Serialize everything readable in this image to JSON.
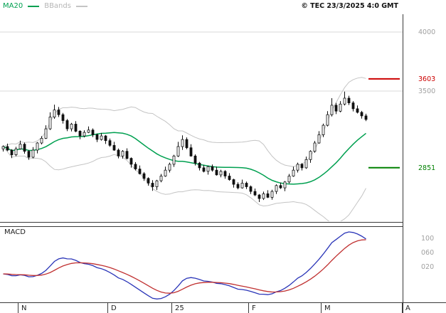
{
  "legend": {
    "ma20_label": "MA20",
    "bbands_label": "BBands"
  },
  "copyright": "© TEC 23/3/2025 4:0 GMT",
  "macd_label": "MACD",
  "price_axis_labels": [
    {
      "text": "4000",
      "price": 4000,
      "color": "#a0a0a0"
    },
    {
      "text": "3603",
      "price": 3603,
      "color": "#cc0000"
    },
    {
      "text": "3500",
      "price": 3500,
      "color": "#a0a0a0"
    },
    {
      "text": "2851",
      "price": 2851,
      "color": "#008000"
    }
  ],
  "macd_axis_labels": [
    {
      "text": "100",
      "value": 100
    },
    {
      "text": "060",
      "value": 60
    },
    {
      "text": "020",
      "value": 20
    }
  ],
  "chart_data": {
    "type": "candlestick",
    "timeframe": "daily",
    "x_ticks": [
      {
        "label": "N",
        "bar": 4
      },
      {
        "label": "D",
        "bar": 25
      },
      {
        "label": "25",
        "bar": 40
      },
      {
        "label": "F",
        "bar": 58
      },
      {
        "label": "M",
        "bar": 75
      },
      {
        "label": "A",
        "bar": 94
      }
    ],
    "colors": {
      "ma20": "#00a050",
      "bbands": "#c4c4c4",
      "candle": "#111111",
      "macd_line": "#2a35b8",
      "signal_line": "#c03030",
      "grid": "#d9d9d9",
      "frame": "#3a3a3a",
      "axis_text": "#a0a0a0",
      "resistance": "#cc0000",
      "support": "#008000"
    },
    "price_pane": {
      "gridlines": [
        4000,
        3500
      ],
      "levels": [
        {
          "name": "resistance",
          "value": 3603,
          "color": "#cc0000"
        },
        {
          "name": "support",
          "value": 2851,
          "color": "#008000"
        }
      ],
      "overlays": [
        {
          "name": "MA20",
          "window": 20
        },
        {
          "name": "BBands",
          "window": 20,
          "stddev": 2
        }
      ],
      "candles_ohlc": [
        [
          3010,
          3040,
          2988,
          3030
        ],
        [
          3030,
          3055,
          2991,
          3000
        ],
        [
          3000,
          3008,
          2932,
          2960
        ],
        [
          2960,
          3028,
          2948,
          3010
        ],
        [
          3010,
          3080,
          3004,
          3050
        ],
        [
          3050,
          3064,
          2970,
          2990
        ],
        [
          2990,
          3000,
          2918,
          2940
        ],
        [
          2940,
          3025,
          2931,
          3000
        ],
        [
          3000,
          3068,
          2972,
          3060
        ],
        [
          3060,
          3118,
          3048,
          3100
        ],
        [
          3100,
          3210,
          3094,
          3180
        ],
        [
          3180,
          3320,
          3170,
          3280
        ],
        [
          3280,
          3385,
          3265,
          3340
        ],
        [
          3340,
          3365,
          3280,
          3300
        ],
        [
          3300,
          3315,
          3225,
          3250
        ],
        [
          3250,
          3264,
          3160,
          3180
        ],
        [
          3180,
          3230,
          3158,
          3220
        ],
        [
          3220,
          3245,
          3151,
          3160
        ],
        [
          3160,
          3168,
          3092,
          3120
        ],
        [
          3120,
          3168,
          3108,
          3150
        ],
        [
          3150,
          3200,
          3144,
          3170
        ],
        [
          3170,
          3184,
          3110,
          3130
        ],
        [
          3130,
          3140,
          3068,
          3090
        ],
        [
          3090,
          3145,
          3081,
          3120
        ],
        [
          3120,
          3128,
          3052,
          3080
        ],
        [
          3080,
          3098,
          3028,
          3040
        ],
        [
          3040,
          3070,
          2994,
          3000
        ],
        [
          3000,
          3014,
          2930,
          2950
        ],
        [
          2950,
          3000,
          2928,
          2990
        ],
        [
          2990,
          3015,
          2921,
          2930
        ],
        [
          2930,
          2938,
          2852,
          2880
        ],
        [
          2880,
          2898,
          2828,
          2840
        ],
        [
          2840,
          2870,
          2794,
          2800
        ],
        [
          2800,
          2814,
          2740,
          2760
        ],
        [
          2760,
          2770,
          2698,
          2720
        ],
        [
          2720,
          2745,
          2655,
          2690
        ],
        [
          2690,
          2748,
          2662,
          2740
        ],
        [
          2740,
          2798,
          2728,
          2780
        ],
        [
          2780,
          2860,
          2774,
          2830
        ],
        [
          2830,
          2894,
          2810,
          2880
        ],
        [
          2880,
          2960,
          2858,
          2950
        ],
        [
          2950,
          3070,
          2941,
          3030
        ],
        [
          3030,
          3125,
          3002,
          3090
        ],
        [
          3090,
          3108,
          3008,
          3020
        ],
        [
          3020,
          3050,
          2944,
          2950
        ],
        [
          2950,
          2964,
          2870,
          2890
        ],
        [
          2890,
          2900,
          2828,
          2850
        ],
        [
          2850,
          2875,
          2811,
          2820
        ],
        [
          2820,
          2868,
          2792,
          2860
        ],
        [
          2860,
          2878,
          2818,
          2830
        ],
        [
          2830,
          2860,
          2784,
          2790
        ],
        [
          2790,
          2834,
          2770,
          2820
        ],
        [
          2820,
          2830,
          2758,
          2780
        ],
        [
          2780,
          2805,
          2741,
          2750
        ],
        [
          2750,
          2758,
          2682,
          2710
        ],
        [
          2710,
          2728,
          2668,
          2680
        ],
        [
          2680,
          2750,
          2674,
          2720
        ],
        [
          2720,
          2734,
          2670,
          2690
        ],
        [
          2690,
          2700,
          2628,
          2650
        ],
        [
          2650,
          2675,
          2611,
          2620
        ],
        [
          2620,
          2628,
          2560,
          2590
        ],
        [
          2590,
          2648,
          2578,
          2630
        ],
        [
          2630,
          2660,
          2594,
          2600
        ],
        [
          2600,
          2664,
          2580,
          2650
        ],
        [
          2650,
          2710,
          2628,
          2700
        ],
        [
          2700,
          2725,
          2671,
          2680
        ],
        [
          2680,
          2738,
          2652,
          2730
        ],
        [
          2730,
          2798,
          2718,
          2780
        ],
        [
          2780,
          2860,
          2774,
          2830
        ],
        [
          2830,
          2894,
          2810,
          2880
        ],
        [
          2880,
          2890,
          2828,
          2850
        ],
        [
          2850,
          2945,
          2841,
          2920
        ],
        [
          2920,
          2998,
          2892,
          2990
        ],
        [
          2990,
          3078,
          2978,
          3060
        ],
        [
          3060,
          3160,
          3054,
          3130
        ],
        [
          3130,
          3224,
          3110,
          3210
        ],
        [
          3210,
          3330,
          3200,
          3300
        ],
        [
          3300,
          3440,
          3285,
          3380
        ],
        [
          3380,
          3400,
          3305,
          3330
        ],
        [
          3330,
          3415,
          3320,
          3390
        ],
        [
          3390,
          3495,
          3378,
          3440
        ],
        [
          3440,
          3460,
          3382,
          3400
        ],
        [
          3400,
          3415,
          3328,
          3350
        ],
        [
          3350,
          3378,
          3310,
          3320
        ],
        [
          3320,
          3332,
          3266,
          3290
        ],
        [
          3290,
          3308,
          3246,
          3260
        ]
      ]
    },
    "macd_pane": {
      "fast": 12,
      "slow": 26,
      "signal": 9,
      "axis_ticks": [
        100,
        60,
        20
      ]
    }
  }
}
